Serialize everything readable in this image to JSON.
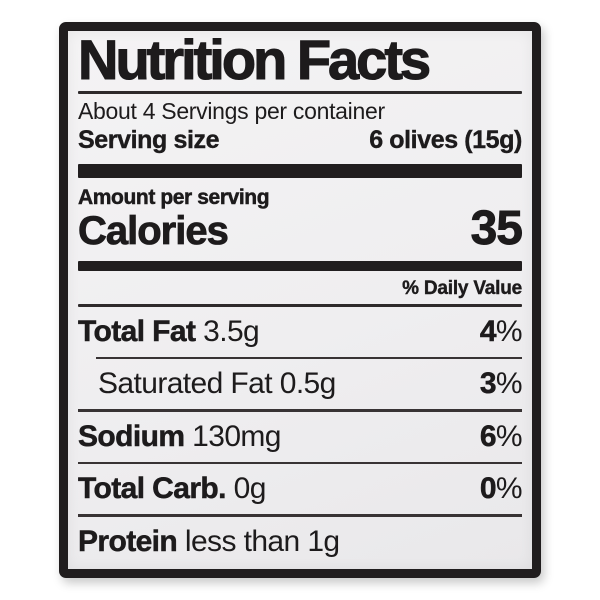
{
  "label": {
    "title": "Nutrition Facts",
    "servings_per_container": "About 4 Servings per container",
    "serving_size_label": "Serving size",
    "serving_size_value": "6 olives (15g)",
    "amount_per_serving": "Amount per serving",
    "calories_label": "Calories",
    "calories_value": "35",
    "daily_value_header": "% Daily Value",
    "nutrients": [
      {
        "name": "Total Fat",
        "amount": "3.5g",
        "dv_value": "4",
        "dv_suffix": "%"
      },
      {
        "name": "Saturated Fat",
        "amount": "0.5g",
        "dv_value": "3",
        "dv_suffix": "%"
      },
      {
        "name": "Sodium",
        "amount": "130mg",
        "dv_value": "6",
        "dv_suffix": "%"
      },
      {
        "name": "Total Carb.",
        "amount": "0g",
        "dv_value": "0",
        "dv_suffix": "%"
      },
      {
        "name": "Protein",
        "amount": "less than 1g"
      }
    ],
    "colors": {
      "ink": "#1d1b1c",
      "paper": "#f1f0f1",
      "border": "#201d1e",
      "background": "#ffffff"
    }
  }
}
